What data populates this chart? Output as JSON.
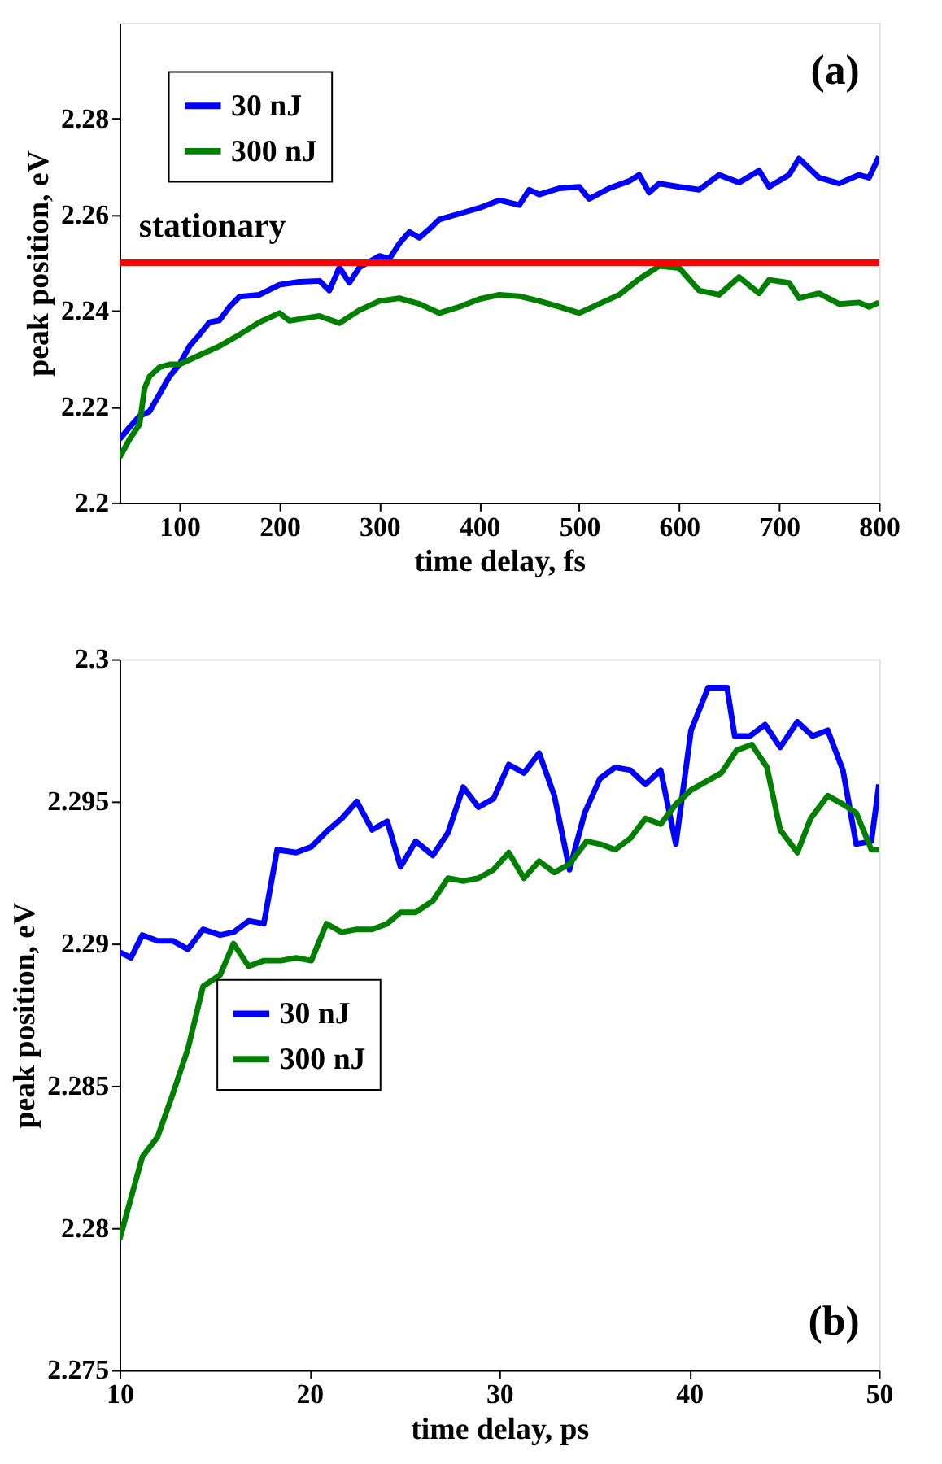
{
  "chart_data": [
    {
      "type": "line",
      "xlabel": "time delay, fs",
      "ylabel": "peak position, eV",
      "annotations": [
        "(a)"
      ],
      "xlim": [
        40,
        800
      ],
      "ylim": [
        2.2,
        2.3
      ],
      "xticks": [
        100,
        200,
        300,
        400,
        500,
        600,
        700,
        800
      ],
      "yticks": [
        2.2,
        2.22,
        2.24,
        2.26,
        2.28
      ],
      "grid": false,
      "legend": "top left",
      "line_style": "solid",
      "marker": "none",
      "ref_lines": [
        {
          "axis": "y",
          "value": 2.25,
          "label": "stationary",
          "color": "#ff0000"
        }
      ],
      "series": [
        {
          "name": "30 nJ",
          "color": "#0000ff",
          "x": [
            40,
            50,
            60,
            70,
            80,
            90,
            100,
            110,
            120,
            130,
            140,
            150,
            160,
            180,
            200,
            220,
            240,
            250,
            260,
            270,
            280,
            300,
            310,
            320,
            330,
            340,
            350,
            360,
            380,
            400,
            420,
            440,
            450,
            460,
            480,
            500,
            510,
            530,
            550,
            560,
            570,
            580,
            600,
            620,
            640,
            660,
            680,
            690,
            710,
            720,
            740,
            760,
            780,
            790,
            800
          ],
          "values": [
            2.2132,
            2.2157,
            2.218,
            2.219,
            2.2226,
            2.2263,
            2.2288,
            2.2326,
            2.235,
            2.2376,
            2.238,
            2.2408,
            2.2429,
            2.2433,
            2.2454,
            2.246,
            2.2462,
            2.2442,
            2.249,
            2.2458,
            2.249,
            2.2514,
            2.2508,
            2.254,
            2.2564,
            2.2552,
            2.257,
            2.259,
            2.2602,
            2.2614,
            2.263,
            2.262,
            2.2652,
            2.2642,
            2.2655,
            2.2658,
            2.2633,
            2.2655,
            2.267,
            2.2683,
            2.2646,
            2.2665,
            2.2658,
            2.2652,
            2.2683,
            2.2667,
            2.2692,
            2.2658,
            2.2683,
            2.2717,
            2.2677,
            2.2665,
            2.2683,
            2.2677,
            2.2721
          ]
        },
        {
          "name": "300 nJ",
          "color": "#007f00",
          "x": [
            40,
            50,
            60,
            65,
            70,
            80,
            90,
            100,
            120,
            140,
            160,
            180,
            200,
            210,
            240,
            260,
            280,
            300,
            320,
            340,
            360,
            380,
            400,
            420,
            440,
            460,
            480,
            500,
            520,
            540,
            560,
            580,
            600,
            620,
            640,
            660,
            680,
            690,
            710,
            720,
            740,
            760,
            780,
            790,
            800
          ],
          "values": [
            2.2094,
            2.2132,
            2.2163,
            2.2238,
            2.2263,
            2.2282,
            2.2288,
            2.2288,
            2.2307,
            2.2326,
            2.235,
            2.2376,
            2.2395,
            2.2379,
            2.2389,
            2.2374,
            2.2401,
            2.242,
            2.2426,
            2.2414,
            2.2395,
            2.2408,
            2.2424,
            2.2433,
            2.243,
            2.242,
            2.2408,
            2.2395,
            2.2414,
            2.2433,
            2.2466,
            2.2493,
            2.2489,
            2.2442,
            2.2433,
            2.247,
            2.2436,
            2.2464,
            2.2458,
            2.2426,
            2.2436,
            2.2414,
            2.2417,
            2.2408,
            2.2417
          ]
        }
      ]
    },
    {
      "type": "line",
      "xlabel": "time delay, ps",
      "ylabel": "peak position, eV",
      "annotations": [
        "(b)"
      ],
      "xlim": [
        10,
        50
      ],
      "ylim": [
        2.275,
        2.3
      ],
      "xticks": [
        10,
        20,
        30,
        40,
        50
      ],
      "yticks": [
        2.275,
        2.28,
        2.285,
        2.29,
        2.295,
        2.3
      ],
      "grid": false,
      "legend": "left",
      "line_style": "solid",
      "marker": "none",
      "series": [
        {
          "name": "30 nJ",
          "color": "#0000ff",
          "x": [
            10,
            10.6,
            11.2,
            12.0,
            12.8,
            13.6,
            14.4,
            15.3,
            16.0,
            16.8,
            17.6,
            18.3,
            19.3,
            20.1,
            21.0,
            21.7,
            22.5,
            23.3,
            24.1,
            24.8,
            25.6,
            26.5,
            27.3,
            28.1,
            28.9,
            29.7,
            30.5,
            31.3,
            32.1,
            32.9,
            33.7,
            34.5,
            35.3,
            36.1,
            36.9,
            37.7,
            38.5,
            39.3,
            40.1,
            41.0,
            42.0,
            42.4,
            43.2,
            44.0,
            44.8,
            45.7,
            46.5,
            47.3,
            48.1,
            48.8,
            49.6,
            50
          ],
          "values": [
            2.2897,
            2.2895,
            2.2903,
            2.2901,
            2.2901,
            2.2898,
            2.2905,
            2.2903,
            2.2904,
            2.2908,
            2.2907,
            2.2933,
            2.2932,
            2.2934,
            2.294,
            2.2944,
            2.295,
            2.294,
            2.2943,
            2.2927,
            2.2936,
            2.2931,
            2.2939,
            2.2955,
            2.2948,
            2.2951,
            2.2963,
            2.296,
            2.2967,
            2.2952,
            2.2926,
            2.2946,
            2.2958,
            2.2962,
            2.2961,
            2.2956,
            2.2961,
            2.2935,
            2.2975,
            2.299,
            2.299,
            2.2973,
            2.2973,
            2.2977,
            2.2969,
            2.2978,
            2.2973,
            2.2975,
            2.2961,
            2.2935,
            2.2936,
            2.2956
          ]
        },
        {
          "name": "300 nJ",
          "color": "#007f00",
          "x": [
            10,
            11.2,
            12.0,
            12.8,
            13.6,
            14.4,
            15.3,
            16.0,
            16.8,
            17.6,
            18.5,
            19.3,
            20.1,
            20.9,
            21.7,
            22.5,
            23.3,
            24.1,
            24.8,
            25.6,
            26.5,
            27.3,
            28.1,
            28.9,
            29.7,
            30.5,
            31.3,
            32.1,
            32.9,
            33.7,
            34.6,
            35.3,
            36.1,
            36.9,
            37.7,
            38.5,
            39.3,
            40.1,
            40.9,
            41.7,
            42.5,
            43.3,
            44.1,
            44.8,
            45.7,
            46.4,
            47.3,
            48.1,
            48.8,
            49.6,
            50
          ],
          "values": [
            2.2796,
            2.2825,
            2.2832,
            2.2847,
            2.2863,
            2.2885,
            2.2889,
            2.29,
            2.2892,
            2.2894,
            2.2894,
            2.2895,
            2.2894,
            2.2907,
            2.2904,
            2.2905,
            2.2905,
            2.2907,
            2.2911,
            2.2911,
            2.2915,
            2.2923,
            2.2922,
            2.2923,
            2.2926,
            2.2932,
            2.2923,
            2.2929,
            2.2925,
            2.2928,
            2.2936,
            2.2935,
            2.2933,
            2.2937,
            2.2944,
            2.2942,
            2.2949,
            2.2954,
            2.2957,
            2.296,
            2.2968,
            2.297,
            2.2962,
            2.294,
            2.2932,
            2.2944,
            2.2952,
            2.2949,
            2.2946,
            2.2933,
            2.2933
          ]
        }
      ]
    }
  ]
}
